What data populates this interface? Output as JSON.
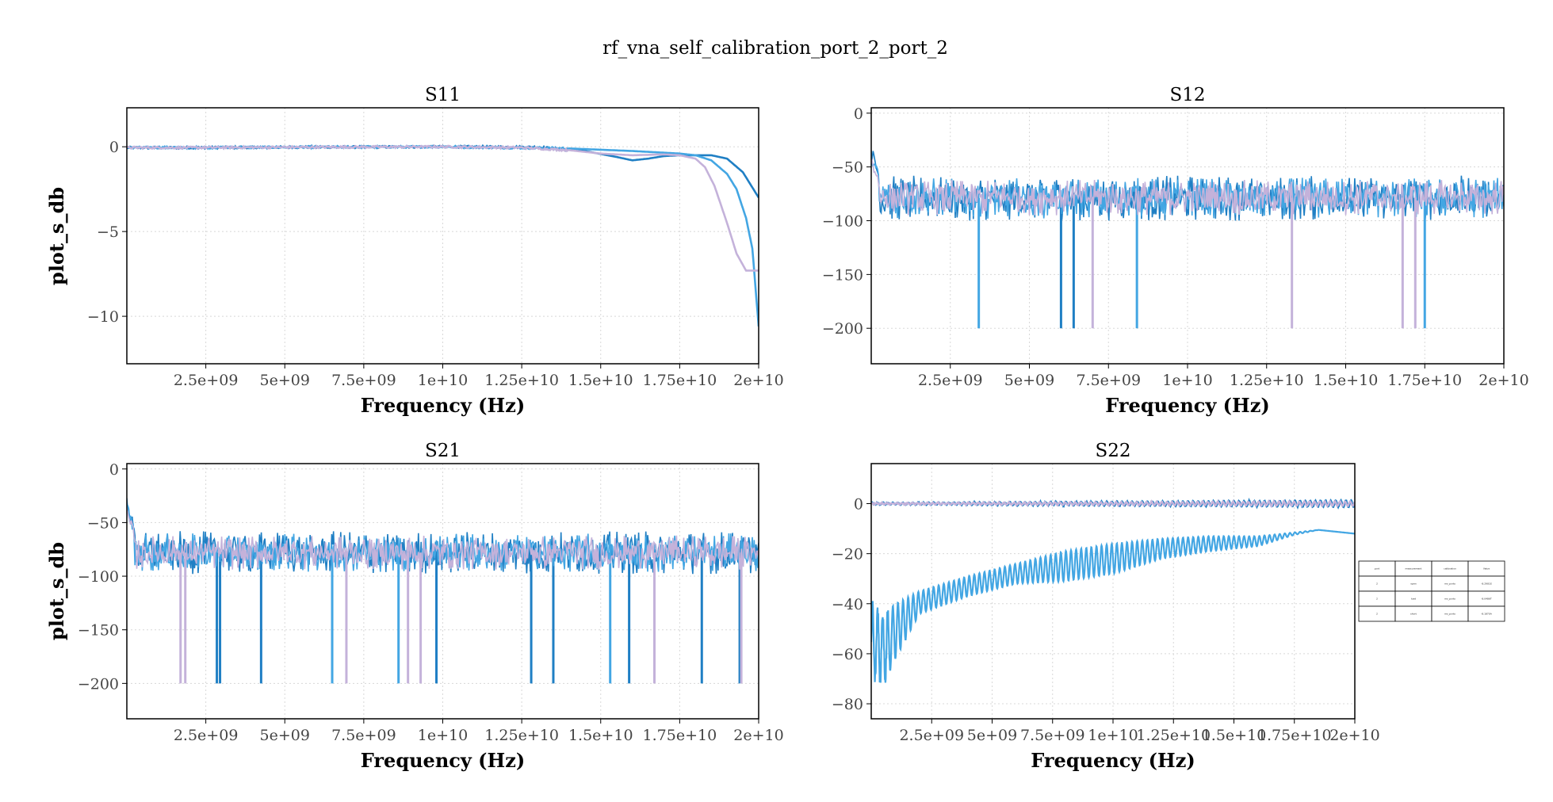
{
  "figure": {
    "suptitle": "rf_vna_self_calibration_port_2_port_2"
  },
  "colors": {
    "series_dark_blue": "#1f7fc4",
    "series_light_blue": "#43a6e3",
    "series_lavender": "#c4b2da",
    "grid": "#d8d8d8",
    "axis": "#000000"
  },
  "chart_data": [
    {
      "id": "s11",
      "type": "line",
      "title": "S11",
      "xlabel": "Frequency (Hz)",
      "ylabel": "plot_s_db",
      "xlim": [
        0,
        20000000000
      ],
      "ylim": [
        -12.8,
        2.3
      ],
      "grid": true,
      "xticks": [
        2500000000,
        5000000000,
        7500000000,
        10000000000,
        12500000000,
        15000000000,
        17500000000,
        20000000000
      ],
      "xtick_labels": [
        "2.5e+09",
        "5e+09",
        "7.5e+09",
        "1e+10",
        "1.25e+10",
        "1.5e+10",
        "1.75e+10",
        "2e+10"
      ],
      "yticks": [
        0,
        -5,
        -10
      ],
      "ytick_labels": [
        "0",
        "−5",
        "−10"
      ],
      "series": [
        {
          "color": "#1f7fc4",
          "x": [
            0,
            2000000000,
            6000000000,
            10000000000,
            13000000000,
            14500000000,
            15500000000,
            16000000000,
            16500000000,
            17000000000,
            17500000000,
            18500000000,
            19000000000,
            19500000000,
            20000000000
          ],
          "y": [
            -0.05,
            -0.05,
            -0.02,
            0.0,
            -0.02,
            -0.25,
            -0.6,
            -0.8,
            -0.7,
            -0.55,
            -0.5,
            -0.5,
            -0.7,
            -1.5,
            -3.0
          ]
        },
        {
          "color": "#43a6e3",
          "x": [
            0,
            2000000000,
            6000000000,
            10000000000,
            14000000000,
            16000000000,
            17500000000,
            18000000000,
            18500000000,
            19000000000,
            19300000000,
            19600000000,
            19800000000,
            20000000000
          ],
          "y": [
            -0.05,
            -0.05,
            -0.02,
            0.0,
            -0.1,
            -0.25,
            -0.4,
            -0.5,
            -0.8,
            -1.6,
            -2.5,
            -4.2,
            -6.0,
            -10.6
          ]
        },
        {
          "color": "#c4b2da",
          "x": [
            0,
            2000000000,
            6000000000,
            10000000000,
            12500000000,
            14000000000,
            15000000000,
            16000000000,
            17000000000,
            17500000000,
            18000000000,
            18300000000,
            18600000000,
            19000000000,
            19300000000,
            19600000000,
            20000000000
          ],
          "y": [
            -0.05,
            -0.05,
            -0.02,
            0.0,
            -0.05,
            -0.2,
            -0.4,
            -0.5,
            -0.45,
            -0.5,
            -0.7,
            -1.2,
            -2.3,
            -4.5,
            -6.3,
            -7.3,
            -7.3
          ]
        }
      ]
    },
    {
      "id": "s12",
      "type": "line",
      "title": "S12",
      "xlabel": "Frequency (Hz)",
      "ylabel": "",
      "xlim": [
        0,
        20000000000
      ],
      "ylim": [
        -233,
        5
      ],
      "grid": true,
      "xticks": [
        2500000000,
        5000000000,
        7500000000,
        10000000000,
        12500000000,
        15000000000,
        17500000000,
        20000000000
      ],
      "xtick_labels": [
        "2.5e+09",
        "5e+09",
        "7.5e+09",
        "1e+10",
        "1.25e+10",
        "1.5e+10",
        "1.75e+10",
        "2e+10"
      ],
      "yticks": [
        0,
        -50,
        -100,
        -150,
        -200
      ],
      "ytick_labels": [
        "0",
        "−50",
        "−100",
        "−150",
        "−200"
      ],
      "series": [
        {
          "color": "#1f7fc4",
          "noise_band": [
            -100,
            -58
          ],
          "start_peak": -35,
          "spikes_x": [
            6000000000,
            6400000000
          ]
        },
        {
          "color": "#43a6e3",
          "noise_band": [
            -98,
            -60
          ],
          "start_peak": -40,
          "spikes_x": [
            3400000000,
            8400000000,
            17500000000
          ]
        },
        {
          "color": "#c4b2da",
          "noise_band": [
            -95,
            -62
          ],
          "start_peak": -45,
          "spikes_x": [
            7000000000,
            13300000000,
            16800000000,
            17200000000
          ]
        }
      ],
      "spike_floor": -200
    },
    {
      "id": "s21",
      "type": "line",
      "title": "S21",
      "xlabel": "Frequency (Hz)",
      "ylabel": "plot_s_db",
      "xlim": [
        0,
        20000000000
      ],
      "ylim": [
        -233,
        5
      ],
      "grid": true,
      "xticks": [
        2500000000,
        5000000000,
        7500000000,
        10000000000,
        12500000000,
        15000000000,
        17500000000,
        20000000000
      ],
      "xtick_labels": [
        "2.5e+09",
        "5e+09",
        "7.5e+09",
        "1e+10",
        "1.25e+10",
        "1.5e+10",
        "1.75e+10",
        "2e+10"
      ],
      "yticks": [
        0,
        -50,
        -100,
        -150,
        -200
      ],
      "ytick_labels": [
        "0",
        "−50",
        "−100",
        "−150",
        "−200"
      ],
      "series": [
        {
          "color": "#1f7fc4",
          "noise_band": [
            -98,
            -58
          ],
          "start_peak": -30,
          "spikes_x": [
            2850000000,
            2950000000,
            4250000000,
            9800000000,
            12800000000,
            13500000000,
            15900000000,
            18200000000,
            19400000000
          ]
        },
        {
          "color": "#43a6e3",
          "noise_band": [
            -96,
            -60
          ],
          "start_peak": -36,
          "spikes_x": [
            6500000000,
            8600000000,
            15300000000
          ]
        },
        {
          "color": "#c4b2da",
          "noise_band": [
            -94,
            -62
          ],
          "start_peak": -42,
          "spikes_x": [
            1700000000,
            1850000000,
            6950000000,
            8900000000,
            9300000000,
            16700000000,
            19450000000
          ]
        }
      ],
      "spike_floor": -200
    },
    {
      "id": "s22",
      "type": "line",
      "title": "S22",
      "xlabel": "Frequency (Hz)",
      "ylabel": "",
      "xlim": [
        0,
        20000000000
      ],
      "ylim": [
        -86,
        16
      ],
      "grid": true,
      "xticks": [
        2500000000,
        5000000000,
        7500000000,
        10000000000,
        12500000000,
        15000000000,
        17500000000,
        20000000000
      ],
      "xtick_labels": [
        "2.5e+09",
        "5e+09",
        "7.5e+09",
        "1e+10",
        "1.25e+10",
        "1.5e+10",
        "1.75e+10",
        "2e+10"
      ],
      "yticks": [
        0,
        -20,
        -40,
        -60,
        -80
      ],
      "ytick_labels": [
        "0",
        "−20",
        "−40",
        "−60",
        "−80"
      ],
      "series": [
        {
          "color": "#1f7fc4",
          "kind": "ripple_near_zero",
          "amp_start": 0.3,
          "amp_end": 1.3
        },
        {
          "color": "#c4b2da",
          "kind": "ripple_near_zero",
          "amp_start": 0.2,
          "amp_end": 0.9
        },
        {
          "color": "#43a6e3",
          "kind": "ripple_envelope",
          "upper_x": [
            0,
            500000000,
            1000000000,
            2000000000,
            4000000000,
            6000000000,
            8000000000,
            10000000000,
            12000000000,
            14000000000,
            16000000000,
            17500000000,
            18500000000,
            19500000000,
            20000000000
          ],
          "upper_y": [
            -40,
            -44,
            -40,
            -35,
            -29,
            -24,
            -19,
            -16,
            -14,
            -13,
            -13,
            -11.5,
            -10.5,
            -11.5,
            -12
          ],
          "lower_x": [
            0,
            500000000,
            1000000000,
            2000000000,
            4000000000,
            6000000000,
            8000000000,
            10000000000,
            12000000000,
            14000000000,
            16000000000,
            17500000000,
            18500000000,
            19500000000,
            20000000000
          ],
          "lower_y": [
            -68,
            -72,
            -62,
            -44,
            -37,
            -32,
            -31,
            -28,
            -22,
            -19,
            -17,
            -12.5,
            -10.5,
            -11.5,
            -12
          ]
        }
      ]
    }
  ],
  "table": {
    "header": [
      "port",
      "measurement",
      "calibration",
      "Value"
    ],
    "rows": [
      [
        "2",
        "open",
        "ms_ports",
        "-8.2901E"
      ],
      [
        "2",
        "load",
        "ms_ports",
        "-8.0486T"
      ],
      [
        "2",
        "short",
        "ms_ports",
        "-8.1870A"
      ]
    ]
  }
}
